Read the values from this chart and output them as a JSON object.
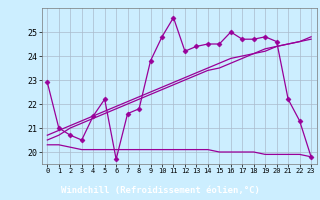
{
  "xlabel": "Windchill (Refroidissement éolien,°C)",
  "hours": [
    0,
    1,
    2,
    3,
    4,
    5,
    6,
    7,
    8,
    9,
    10,
    11,
    12,
    13,
    14,
    15,
    16,
    17,
    18,
    19,
    20,
    21,
    22,
    23
  ],
  "temp_line": [
    22.9,
    21.0,
    20.7,
    20.5,
    21.5,
    22.2,
    19.7,
    21.6,
    21.8,
    23.8,
    24.8,
    25.6,
    24.2,
    24.4,
    24.5,
    24.5,
    25.0,
    24.7,
    24.7,
    24.8,
    24.6,
    22.2,
    21.3,
    19.8
  ],
  "min_line": [
    20.3,
    20.3,
    20.2,
    20.1,
    20.1,
    20.1,
    20.1,
    20.1,
    20.1,
    20.1,
    20.1,
    20.1,
    20.1,
    20.1,
    20.1,
    20.0,
    20.0,
    20.0,
    20.0,
    19.9,
    19.9,
    19.9,
    19.9,
    19.8
  ],
  "trend_line1": [
    20.5,
    20.7,
    21.0,
    21.2,
    21.4,
    21.6,
    21.8,
    22.0,
    22.2,
    22.4,
    22.6,
    22.8,
    23.0,
    23.2,
    23.4,
    23.5,
    23.7,
    23.9,
    24.1,
    24.2,
    24.4,
    24.5,
    24.6,
    24.7
  ],
  "trend_line2": [
    20.7,
    20.9,
    21.1,
    21.3,
    21.5,
    21.7,
    21.9,
    22.1,
    22.3,
    22.5,
    22.7,
    22.9,
    23.1,
    23.3,
    23.5,
    23.7,
    23.9,
    24.0,
    24.1,
    24.3,
    24.4,
    24.5,
    24.6,
    24.8
  ],
  "line_color": "#990099",
  "bg_color": "#cceeff",
  "grid_color": "#aabbcc",
  "label_bg": "#660066",
  "label_color": "#ffffff",
  "ylim": [
    19.5,
    26.0
  ],
  "yticks": [
    20,
    21,
    22,
    23,
    24,
    25
  ],
  "marker": "D",
  "markersize": 2.5
}
